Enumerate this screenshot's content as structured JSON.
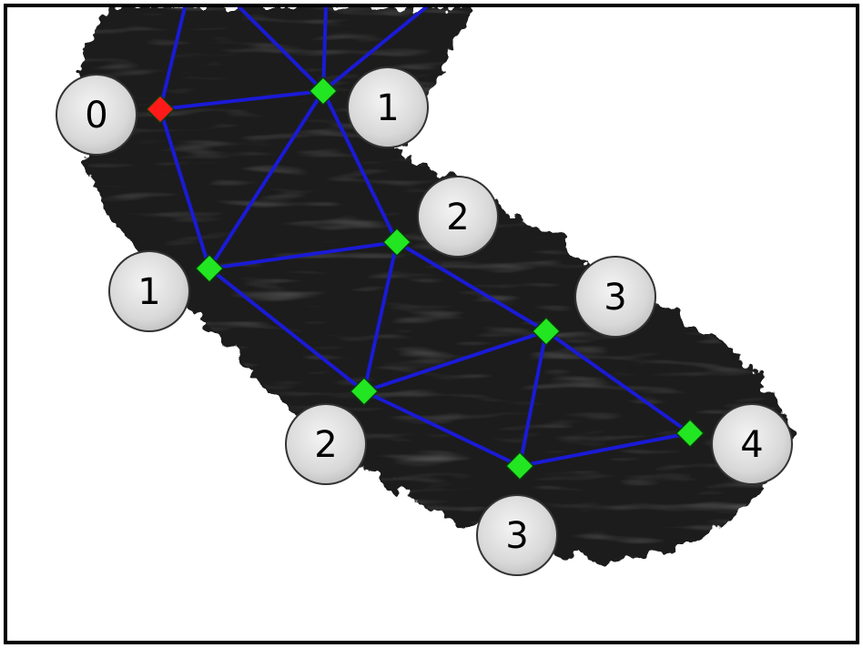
{
  "colors": {
    "edge": "#1a1ad6",
    "source_node": "#ff1a1a",
    "node": "#22e622",
    "label_fill": "#e0e0e0",
    "label_stroke": "#333333",
    "tissue": "#1c1c1c"
  },
  "nodes": [
    {
      "id": "n0",
      "type": "source",
      "label": "0"
    },
    {
      "id": "n1a",
      "type": "normal",
      "label": "1"
    },
    {
      "id": "n1b",
      "type": "normal",
      "label": "1"
    },
    {
      "id": "n2a",
      "type": "normal",
      "label": "2"
    },
    {
      "id": "n2b",
      "type": "normal",
      "label": "2"
    },
    {
      "id": "n3a",
      "type": "normal",
      "label": "3"
    },
    {
      "id": "n3b",
      "type": "normal",
      "label": "3"
    },
    {
      "id": "n4",
      "type": "normal",
      "label": "4"
    }
  ],
  "edges": [
    [
      "n0",
      "n1a"
    ],
    [
      "n0",
      "n1b"
    ],
    [
      "n1a",
      "n1b"
    ],
    [
      "n1a",
      "n2a"
    ],
    [
      "n1b",
      "n2a"
    ],
    [
      "n1b",
      "n2b"
    ],
    [
      "n2a",
      "n2b"
    ],
    [
      "n2a",
      "n3a"
    ],
    [
      "n2b",
      "n3a"
    ],
    [
      "n2b",
      "n3b"
    ],
    [
      "n3a",
      "n3b"
    ],
    [
      "n3a",
      "n4"
    ],
    [
      "n3b",
      "n4"
    ]
  ]
}
